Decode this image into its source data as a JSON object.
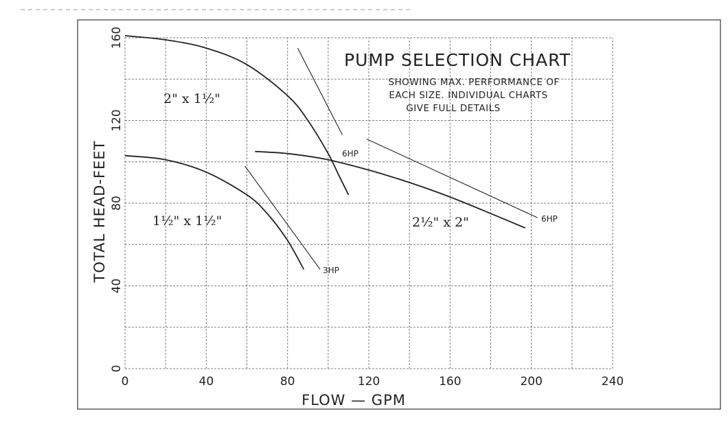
{
  "chart_data": {
    "type": "line",
    "title": "PUMP SELECTION CHART",
    "subtitle": [
      "SHOWING MAX. PERFORMANCE OF",
      "EACH SIZE. INDIVIDUAL CHARTS",
      "GIVE FULL DETAILS"
    ],
    "xlabel": "FLOW — GPM",
    "ylabel": "TOTAL HEAD-FEET",
    "xlim": [
      0,
      240
    ],
    "ylim": [
      0,
      160
    ],
    "x_ticks": [
      0,
      40,
      80,
      120,
      160,
      200,
      240
    ],
    "y_ticks": [
      0,
      40,
      80,
      120,
      160
    ],
    "grid": true,
    "series": [
      {
        "name": "2\" x 1½\"",
        "x": [
          0,
          20,
          40,
          60,
          80,
          90,
          100,
          105,
          110
        ],
        "y": [
          161,
          159,
          155,
          147,
          132,
          120,
          104,
          94,
          84
        ]
      },
      {
        "name": "1½\" x 1½\"",
        "x": [
          0,
          20,
          40,
          60,
          70,
          80,
          88
        ],
        "y": [
          103,
          101,
          95,
          84,
          75,
          62,
          48
        ]
      },
      {
        "name": "2½\" x 2\"",
        "x": [
          64,
          80,
          100,
          120,
          140,
          160,
          180,
          197
        ],
        "y": [
          105,
          104,
          101,
          96,
          90,
          83,
          75,
          68
        ]
      }
    ],
    "hp_lines": [
      {
        "label": "6HP",
        "x": [
          85,
          107
        ],
        "y": [
          155,
          113
        ]
      },
      {
        "label": "3HP",
        "x": [
          59,
          96
        ],
        "y": [
          98,
          48
        ]
      },
      {
        "label": "6HP",
        "x": [
          119,
          203
        ],
        "y": [
          111,
          73
        ]
      }
    ]
  }
}
